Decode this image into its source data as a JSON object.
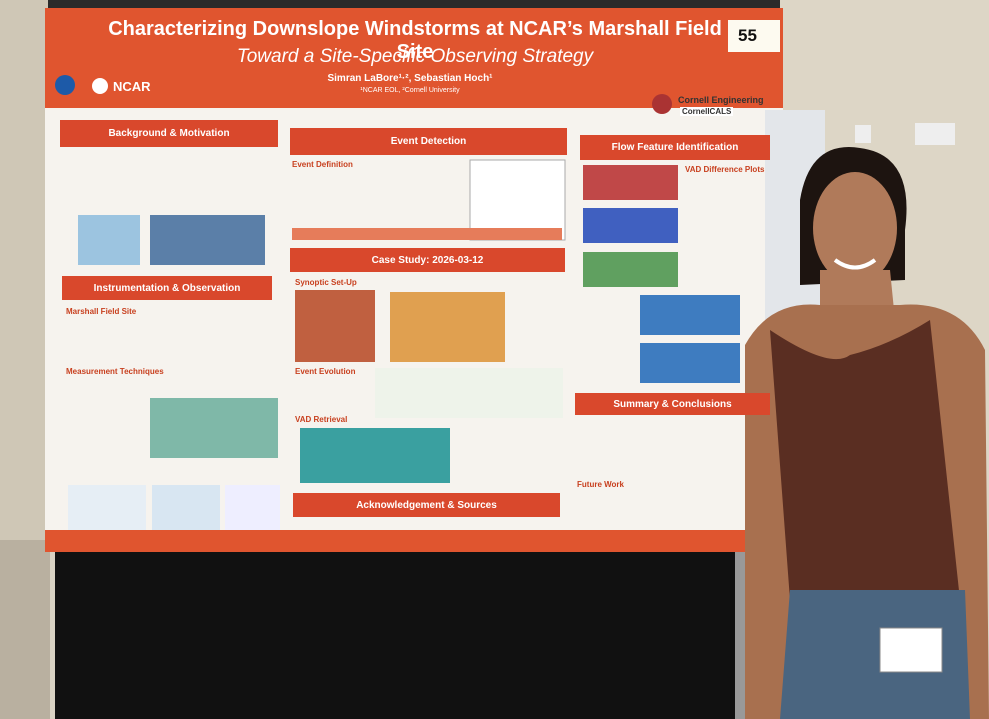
{
  "board_number": "55",
  "poster": {
    "title": "Characterizing Downslope Windstorms at NCAR’s Marshall Field Site",
    "subtitle": "Toward a Site-Specific Observing Strategy",
    "authors": "Simran LaBore¹·², Sebastian Hoch¹",
    "affiliation": "¹NCAR EOL, ²Cornell University",
    "logos": [
      "NCAR",
      "Cornell Engineering",
      "CornellCALS"
    ],
    "sections": [
      "Background & Motivation",
      "Event Detection",
      "Flow Feature Identification",
      "Instrumentation & Observation",
      "Case Study: 2026-03-12",
      "Summary & Conclusions",
      "Acknowledgement & Sources"
    ],
    "subheadings": [
      "Marshall Field Site",
      "Measurement Techniques",
      "Event Definition",
      "Synoptic Set-Up",
      "Event Evolution",
      "VAD Retrieval",
      "VAD Difference Plots",
      "Future Work"
    ]
  }
}
